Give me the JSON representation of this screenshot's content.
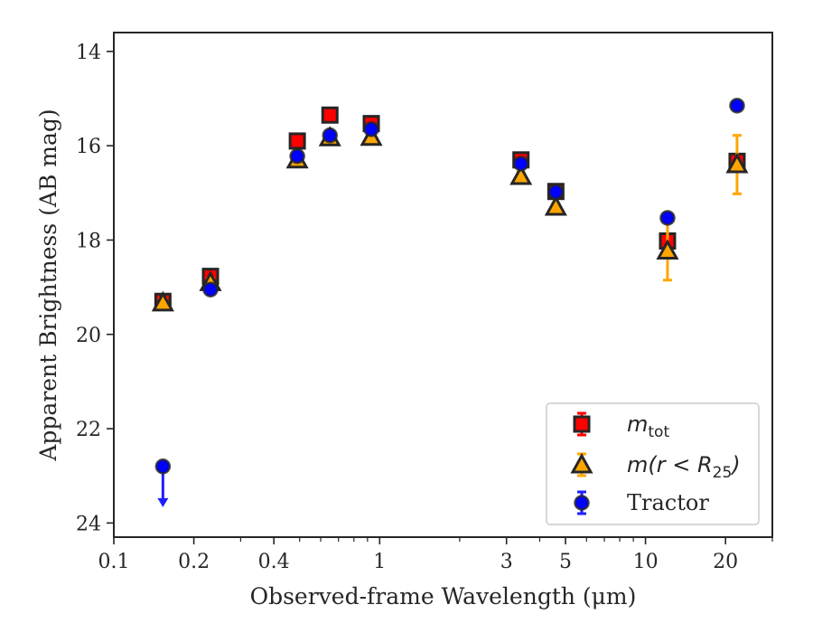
{
  "chart_data": {
    "type": "scatter",
    "xlabel": "Observed-frame Wavelength (μm)",
    "ylabel": "Apparent Brightness (AB mag)",
    "xscale": "log",
    "xlim": [
      0.1,
      30
    ],
    "ylim": [
      24.3,
      13.6
    ],
    "y_inverted": true,
    "x_ticks": [
      0.1,
      0.2,
      0.4,
      1,
      3,
      5,
      10,
      20
    ],
    "x_tick_labels": [
      "0.1",
      "0.2",
      "0.4",
      "1",
      "3",
      "5",
      "10",
      "20"
    ],
    "y_ticks": [
      14,
      16,
      18,
      20,
      22,
      24
    ],
    "y_tick_labels": [
      "14",
      "16",
      "18",
      "20",
      "22",
      "24"
    ],
    "grid": false,
    "legend_position": "lower-right",
    "series": [
      {
        "name": "m_tot",
        "legend_main": "m",
        "legend_sub": "tot",
        "marker": "square",
        "fill": "#ff0000",
        "edge": "#262626",
        "errcolor": "#ff0000",
        "points": [
          {
            "x": 0.153,
            "y": 19.3,
            "err": 0.08
          },
          {
            "x": 0.231,
            "y": 18.77,
            "err": 0.08
          },
          {
            "x": 0.49,
            "y": 15.9,
            "err": 0.05
          },
          {
            "x": 0.65,
            "y": 15.35,
            "err": 0.05
          },
          {
            "x": 0.93,
            "y": 15.53,
            "err": 0.08
          },
          {
            "x": 3.4,
            "y": 16.3,
            "err": 0.08
          },
          {
            "x": 4.6,
            "y": 16.97,
            "err": 0.08
          },
          {
            "x": 12.1,
            "y": 18.02,
            "err": 0.1
          },
          {
            "x": 22.1,
            "y": 16.33,
            "err": 0.12
          }
        ]
      },
      {
        "name": "m(r < R25)",
        "legend_main": "m(r < R",
        "legend_sub": "25",
        "legend_tail": ")",
        "marker": "triangle",
        "fill": "#ffa500",
        "edge": "#262626",
        "errcolor": "#ffa500",
        "points": [
          {
            "x": 0.153,
            "y": 19.33,
            "err": 0.08
          },
          {
            "x": 0.231,
            "y": 18.9,
            "err": 0.08
          },
          {
            "x": 0.49,
            "y": 16.3,
            "err": 0.06
          },
          {
            "x": 0.65,
            "y": 15.83,
            "err": 0.06
          },
          {
            "x": 0.93,
            "y": 15.82,
            "err": 0.08
          },
          {
            "x": 3.4,
            "y": 16.65,
            "err": 0.08
          },
          {
            "x": 4.6,
            "y": 17.3,
            "err": 0.08
          },
          {
            "x": 12.1,
            "y": 18.23,
            "err": 0.62
          },
          {
            "x": 22.1,
            "y": 16.4,
            "err": 0.62
          }
        ]
      },
      {
        "name": "Tractor",
        "legend_main": "Tractor",
        "marker": "circle",
        "fill": "#0000ff",
        "edge": "#262626",
        "errcolor": "#1f1fff",
        "points": [
          {
            "x": 0.153,
            "y": 22.8,
            "err": 0,
            "upper_limit": true
          },
          {
            "x": 0.231,
            "y": 19.05,
            "err": 0.05
          },
          {
            "x": 0.49,
            "y": 16.22,
            "err": 0.05
          },
          {
            "x": 0.65,
            "y": 15.78,
            "err": 0.05
          },
          {
            "x": 0.93,
            "y": 15.65,
            "err": 0.05
          },
          {
            "x": 3.4,
            "y": 16.38,
            "err": 0.05
          },
          {
            "x": 4.6,
            "y": 16.98,
            "err": 0.05
          },
          {
            "x": 12.1,
            "y": 17.53,
            "err": 0.08
          },
          {
            "x": 22.1,
            "y": 15.15,
            "err": 0.08
          }
        ]
      }
    ]
  }
}
